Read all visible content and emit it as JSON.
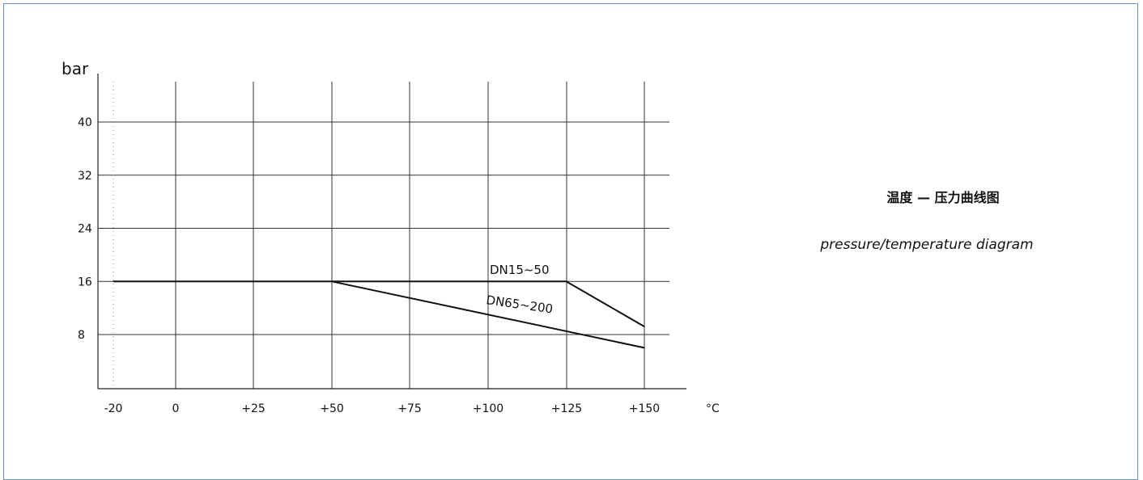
{
  "side_text": {
    "title_cn": "温度 — 压力曲线图",
    "title_en": "pressure/temperature diagram"
  },
  "chart_data": {
    "type": "line",
    "xlabel": "°C",
    "ylabel": "bar",
    "x_ticks": [
      "-20",
      "0",
      "+25",
      "+50",
      "+75",
      "+100",
      "+125",
      "+150"
    ],
    "y_ticks": [
      "8",
      "16",
      "24",
      "32",
      "40"
    ],
    "xlim": [
      -20,
      150
    ],
    "ylim": [
      0,
      46
    ],
    "grid": true,
    "series": [
      {
        "name": "DN15~50",
        "x": [
          -20,
          50,
          125,
          150
        ],
        "y": [
          16,
          16,
          16,
          9.2
        ]
      },
      {
        "name": "DN65~200",
        "x": [
          50,
          150
        ],
        "y": [
          16,
          6
        ]
      }
    ],
    "colors": {
      "line": "#111111",
      "grid": "#333333",
      "reference": "#999999"
    }
  }
}
